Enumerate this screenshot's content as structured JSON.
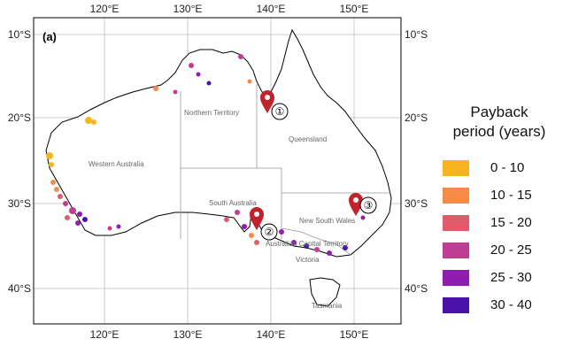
{
  "panel_label": "(a)",
  "axes": {
    "x_ticks": [
      "120°E",
      "130°E",
      "140°E",
      "150°E"
    ],
    "y_ticks": [
      "10°S",
      "20°S",
      "30°S",
      "40°S"
    ]
  },
  "regions": [
    "Northern Territory",
    "Queensland",
    "Western Australia",
    "South Australia",
    "New South Wales",
    "Australian Capital Territory",
    "Victoria",
    "Tasmania"
  ],
  "markers": [
    {
      "label": "①",
      "lon": 139.0,
      "lat": -18.6
    },
    {
      "label": "②",
      "lon": 138.2,
      "lat": -32.2
    },
    {
      "label": "③",
      "lon": 149.9,
      "lat": -30.2
    }
  ],
  "legend": {
    "title_line1": "Payback",
    "title_line2": "period (years)",
    "items": [
      {
        "label": "0 - 10",
        "color": "#F8B41E"
      },
      {
        "label": "10 - 15",
        "color": "#F58B47"
      },
      {
        "label": "15 - 20",
        "color": "#E05C6A"
      },
      {
        "label": "20 - 25",
        "color": "#BF3E93"
      },
      {
        "label": "25 - 30",
        "color": "#8E1DB0"
      },
      {
        "label": "30 - 40",
        "color": "#4A12A8"
      }
    ]
  },
  "colors": {
    "marker": "#C0232B",
    "grid": "#BBBBBB",
    "coast": "#000000"
  }
}
